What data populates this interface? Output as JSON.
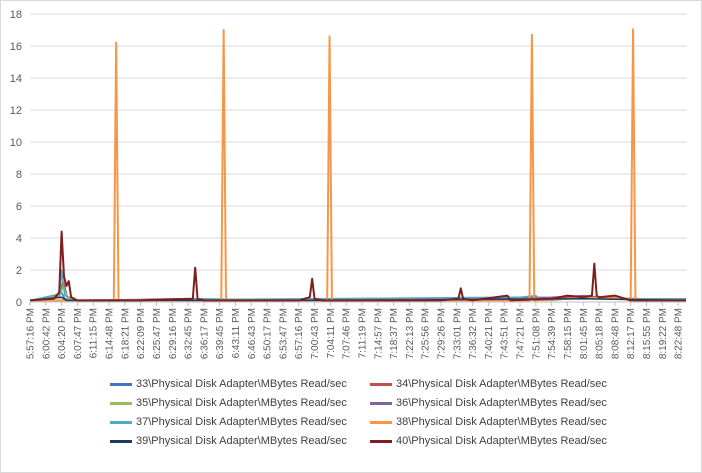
{
  "chart_data": {
    "type": "line",
    "title": "",
    "xlabel": "",
    "ylabel": "",
    "ylim": [
      0,
      18
    ],
    "yticks": [
      0,
      2,
      4,
      6,
      8,
      10,
      12,
      14,
      16,
      18
    ],
    "grid": "horizontal",
    "legend_placement": "bottom",
    "x_ticks": [
      "5:57:16 PM",
      "6:00:42 PM",
      "6:04:20 PM",
      "6:07:47 PM",
      "6:11:15 PM",
      "6:14:48 PM",
      "6:18:21 PM",
      "6:22:09 PM",
      "6:25:47 PM",
      "6:29:16 PM",
      "6:32:45 PM",
      "6:36:17 PM",
      "6:39:45 PM",
      "6:43:11 PM",
      "6:46:43 PM",
      "6:50:17 PM",
      "6:53:47 PM",
      "6:57:16 PM",
      "7:00:43 PM",
      "7:04:11 PM",
      "7:07:46 PM",
      "7:11:19 PM",
      "7:14:57 PM",
      "7:18:37 PM",
      "7:22:13 PM",
      "7:25:56 PM",
      "7:29:26 PM",
      "7:33:01 PM",
      "7:36:32 PM",
      "7:40:21 PM",
      "7:43:51 PM",
      "7:47:21 PM",
      "7:51:08 PM",
      "7:54:39 PM",
      "7:58:15 PM",
      "8:01:45 PM",
      "8:05:18 PM",
      "8:08:48 PM",
      "8:12:17 PM",
      "8:15:55 PM",
      "8:19:22 PM",
      "8:22:48 PM"
    ],
    "x_domain": [
      0,
      41.5
    ],
    "series": [
      {
        "name": "33\\Physical Disk Adapter\\MBytes Read/sec",
        "color": "#4472c4",
        "points": [
          [
            0,
            0.1
          ],
          [
            1,
            0.2
          ],
          [
            1.5,
            0.3
          ],
          [
            2,
            0.6
          ],
          [
            2.2,
            0.2
          ],
          [
            3,
            0.1
          ],
          [
            8,
            0.1
          ],
          [
            10,
            0.2
          ],
          [
            20,
            0.1
          ],
          [
            28,
            0.2
          ],
          [
            31,
            0.2
          ],
          [
            34,
            0.3
          ],
          [
            35,
            0.4
          ],
          [
            36,
            0.3
          ],
          [
            38,
            0.2
          ],
          [
            40,
            0.1
          ],
          [
            41.5,
            0.1
          ]
        ]
      },
      {
        "name": "34\\Physical Disk Adapter\\MBytes Read/sec",
        "color": "#c0504d",
        "points": [
          [
            0,
            0.1
          ],
          [
            1,
            0.1
          ],
          [
            1.8,
            0.3
          ],
          [
            2.1,
            1.3
          ],
          [
            2.4,
            0.2
          ],
          [
            3,
            0.1
          ],
          [
            10,
            0.1
          ],
          [
            20,
            0.1
          ],
          [
            33,
            0.2
          ],
          [
            35,
            0.3
          ],
          [
            37,
            0.2
          ],
          [
            41.5,
            0.1
          ]
        ]
      },
      {
        "name": "35\\Physical Disk Adapter\\MBytes Read/sec",
        "color": "#9bbb59",
        "points": [
          [
            0,
            0.1
          ],
          [
            1.9,
            0.4
          ],
          [
            2.1,
            1.0
          ],
          [
            2.4,
            0.2
          ],
          [
            3,
            0.1
          ],
          [
            34,
            0.2
          ],
          [
            36,
            0.3
          ],
          [
            41.5,
            0.1
          ]
        ]
      },
      {
        "name": "36\\Physical Disk Adapter\\MBytes Read/sec",
        "color": "#8064a2",
        "points": [
          [
            0,
            0.1
          ],
          [
            2,
            0.3
          ],
          [
            2.3,
            0.1
          ],
          [
            10,
            0.2
          ],
          [
            11,
            0.1
          ],
          [
            33,
            0.3
          ],
          [
            35,
            0.4
          ],
          [
            37,
            0.2
          ],
          [
            41.5,
            0.1
          ]
        ]
      },
      {
        "name": "37\\Physical Disk Adapter\\MBytes Read/sec",
        "color": "#4bacc6",
        "points": [
          [
            0,
            0.1
          ],
          [
            1.9,
            0.5
          ],
          [
            2.0,
            2.0
          ],
          [
            2.2,
            0.4
          ],
          [
            3,
            0.1
          ],
          [
            31,
            0.3
          ],
          [
            32,
            0.4
          ],
          [
            32.3,
            0.1
          ],
          [
            33,
            0.1
          ],
          [
            35,
            0.3
          ],
          [
            36,
            0.2
          ],
          [
            41.5,
            0.2
          ]
        ]
      },
      {
        "name": "38\\Physical Disk Adapter\\MBytes Read/sec",
        "color": "#f79646",
        "points": [
          [
            0,
            0.1
          ],
          [
            5.3,
            0.1
          ],
          [
            5.45,
            16.2
          ],
          [
            5.6,
            0.1
          ],
          [
            12.1,
            0.1
          ],
          [
            12.25,
            17.0
          ],
          [
            12.4,
            0.1
          ],
          [
            18.8,
            0.1
          ],
          [
            18.95,
            16.6
          ],
          [
            19.1,
            0.1
          ],
          [
            31.6,
            0.1
          ],
          [
            31.75,
            16.7
          ],
          [
            31.9,
            0.1
          ],
          [
            34,
            0.2
          ],
          [
            37,
            0.3
          ],
          [
            38,
            0.1
          ],
          [
            38.15,
            17.05
          ],
          [
            38.3,
            0.1
          ],
          [
            41.5,
            0.1
          ]
        ]
      },
      {
        "name": "39\\Physical Disk Adapter\\MBytes Read/sec",
        "color": "#1f3864",
        "points": [
          [
            0,
            0.1
          ],
          [
            2,
            0.3
          ],
          [
            2.3,
            0.1
          ],
          [
            20,
            0.1
          ],
          [
            35,
            0.2
          ],
          [
            41.5,
            0.1
          ]
        ]
      },
      {
        "name": "40\\Physical Disk Adapter\\MBytes Read/sec",
        "color": "#7b1f1f",
        "points": [
          [
            0,
            0.1
          ],
          [
            1.5,
            0.2
          ],
          [
            1.85,
            0.6
          ],
          [
            2.0,
            4.4
          ],
          [
            2.15,
            1.6
          ],
          [
            2.3,
            1.0
          ],
          [
            2.45,
            1.3
          ],
          [
            2.6,
            0.3
          ],
          [
            3,
            0.1
          ],
          [
            7,
            0.1
          ],
          [
            8,
            0.15
          ],
          [
            10.3,
            0.2
          ],
          [
            10.45,
            2.15
          ],
          [
            10.6,
            0.2
          ],
          [
            11,
            0.1
          ],
          [
            17,
            0.1
          ],
          [
            17.7,
            0.3
          ],
          [
            17.85,
            1.45
          ],
          [
            18,
            0.2
          ],
          [
            18.5,
            0.1
          ],
          [
            26,
            0.1
          ],
          [
            27.1,
            0.2
          ],
          [
            27.25,
            0.85
          ],
          [
            27.4,
            0.2
          ],
          [
            28,
            0.1
          ],
          [
            30.2,
            0.4
          ],
          [
            30.4,
            0.1
          ],
          [
            33,
            0.2
          ],
          [
            34,
            0.4
          ],
          [
            35,
            0.3
          ],
          [
            35.55,
            0.4
          ],
          [
            35.7,
            2.4
          ],
          [
            35.85,
            0.4
          ],
          [
            36,
            0.3
          ],
          [
            37,
            0.4
          ],
          [
            38,
            0.1
          ],
          [
            41.5,
            0.1
          ]
        ]
      }
    ]
  }
}
